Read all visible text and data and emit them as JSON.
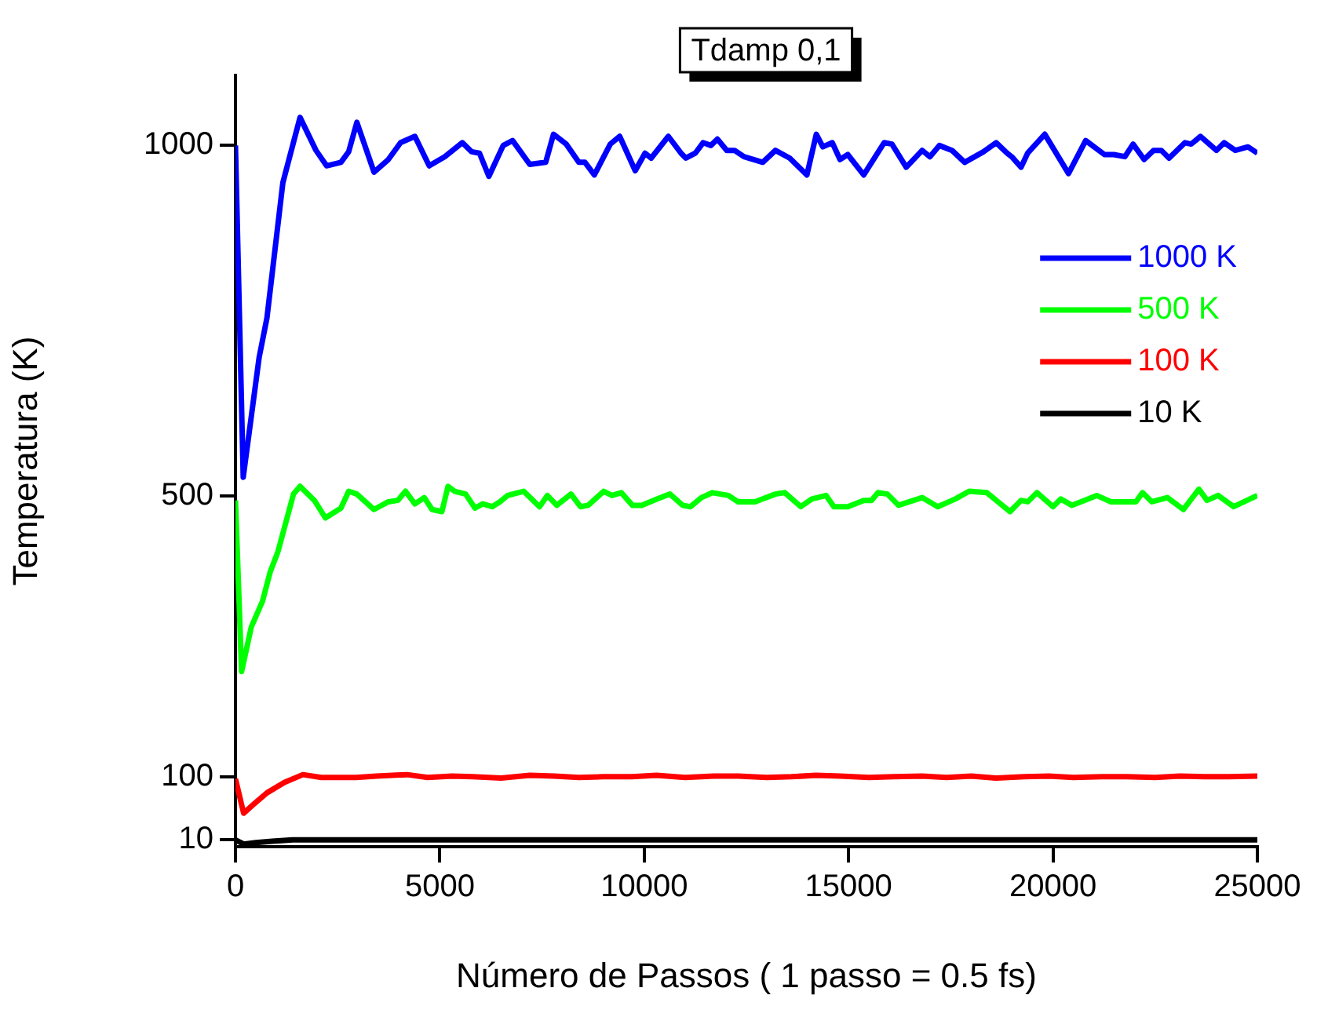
{
  "chart_data": {
    "type": "line",
    "title": "Tdamp 0,1",
    "xlabel": "Número de Passos ( 1 passo = 0.5 fs)",
    "ylabel": "Temperatura (K)",
    "xlim": [
      0,
      25000
    ],
    "xticks": [
      0,
      5000,
      10000,
      15000,
      20000,
      25000
    ],
    "ylim": [
      0,
      1100
    ],
    "yticks": [
      10,
      100,
      500,
      1000
    ],
    "grid": false,
    "legend": "right",
    "marker": "none",
    "line_style": "solid",
    "series": [
      {
        "name": "1000 K",
        "color": "#0000ff",
        "x": [
          0,
          190,
          580,
          770,
          1160,
          1580,
          1970,
          2230,
          2580,
          2770,
          2970,
          3390,
          3740,
          4040,
          4390,
          4740,
          5120,
          5550,
          5780,
          5970,
          6200,
          6550,
          6780,
          7200,
          7590,
          7780,
          8090,
          8400,
          8550,
          8780,
          9170,
          9400,
          9780,
          10020,
          10170,
          10590,
          10900,
          11020,
          11250,
          11440,
          11630,
          11790,
          12020,
          12210,
          12440,
          12900,
          13210,
          13560,
          13980,
          14210,
          14370,
          14600,
          14790,
          14980,
          15370,
          15870,
          16060,
          16410,
          16800,
          16990,
          17220,
          17530,
          17840,
          18300,
          18610,
          18880,
          18990,
          19220,
          19380,
          19800,
          20380,
          20800,
          21260,
          21490,
          21760,
          21960,
          22230,
          22460,
          22650,
          22840,
          23230,
          23380,
          23610,
          24000,
          24190,
          24460,
          24770,
          25000
        ],
        "values": [
          1000,
          527,
          698,
          754,
          947,
          1040,
          993,
          971,
          976,
          991,
          1033,
          962,
          980,
          1004,
          1013,
          971,
          984,
          1004,
          991,
          989,
          956,
          1000,
          1007,
          973,
          976,
          1016,
          1002,
          976,
          976,
          958,
          1002,
          1013,
          964,
          989,
          982,
          1013,
          989,
          982,
          989,
          1004,
          1000,
          1009,
          993,
          993,
          984,
          976,
          993,
          982,
          958,
          1016,
          998,
          1004,
          980,
          987,
          958,
          1004,
          1002,
          969,
          993,
          984,
          1000,
          993,
          976,
          991,
          1004,
          989,
          984,
          969,
          989,
          1016,
          960,
          1007,
          987,
          987,
          984,
          1002,
          980,
          993,
          993,
          982,
          1004,
          1002,
          1013,
          993,
          1004,
          993,
          998,
          989
        ]
      },
      {
        "name": "500 K",
        "color": "#00ff00",
        "x": [
          0,
          150,
          390,
          660,
          850,
          1040,
          1420,
          1580,
          1930,
          2200,
          2580,
          2770,
          2970,
          3390,
          3740,
          3970,
          4160,
          4390,
          4620,
          4810,
          5050,
          5200,
          5360,
          5630,
          5860,
          6050,
          6280,
          6470,
          6660,
          7050,
          7440,
          7630,
          7860,
          8210,
          8440,
          8630,
          9010,
          9210,
          9440,
          9710,
          9940,
          10320,
          10630,
          10940,
          11130,
          11400,
          11670,
          12060,
          12290,
          12560,
          12710,
          13210,
          13440,
          13830,
          14100,
          14450,
          14640,
          14980,
          15370,
          15560,
          15720,
          15950,
          16220,
          16800,
          17180,
          17610,
          17950,
          18380,
          18950,
          19220,
          19380,
          19610,
          20000,
          20190,
          20460,
          20770,
          21070,
          21420,
          22030,
          22190,
          22420,
          22800,
          23190,
          23570,
          23770,
          24040,
          24420,
          25000
        ],
        "values": [
          494,
          250,
          314,
          350,
          392,
          421,
          503,
          514,
          494,
          469,
          483,
          507,
          503,
          481,
          492,
          494,
          507,
          489,
          498,
          481,
          478,
          514,
          507,
          503,
          483,
          489,
          485,
          492,
          501,
          507,
          485,
          501,
          487,
          503,
          485,
          487,
          507,
          501,
          505,
          487,
          487,
          496,
          503,
          487,
          485,
          498,
          505,
          501,
          492,
          492,
          492,
          503,
          505,
          485,
          496,
          501,
          485,
          485,
          494,
          494,
          505,
          503,
          487,
          498,
          485,
          496,
          507,
          505,
          478,
          494,
          492,
          505,
          485,
          496,
          487,
          494,
          501,
          492,
          492,
          505,
          492,
          498,
          481,
          510,
          494,
          501,
          485,
          501
        ]
      },
      {
        "name": "100 K",
        "color": "#ff0000",
        "x": [
          0,
          200,
          450,
          770,
          1200,
          1650,
          2100,
          2950,
          3450,
          4200,
          4700,
          5300,
          5800,
          6500,
          7200,
          7800,
          8400,
          9000,
          9700,
          10300,
          11000,
          11700,
          12300,
          13000,
          13600,
          14200,
          14800,
          15500,
          16100,
          16800,
          17400,
          18000,
          18600,
          19300,
          19900,
          20500,
          21200,
          21800,
          22500,
          23100,
          23700,
          24300,
          25000
        ],
        "values": [
          97,
          48,
          61,
          77,
          92,
          103,
          99,
          99,
          101,
          103,
          99,
          101,
          100,
          98,
          102,
          101,
          99,
          100,
          100,
          102,
          99,
          101,
          101,
          99,
          100,
          102,
          101,
          99,
          100,
          101,
          99,
          101,
          98,
          100,
          101,
          99,
          100,
          100,
          99,
          101,
          100,
          100,
          101
        ]
      },
      {
        "name": "10 K",
        "color": "#000000",
        "x": [
          0,
          200,
          500,
          900,
          1400,
          2000,
          3000,
          4000,
          5000,
          6000,
          7000,
          8000,
          9000,
          10000,
          11000,
          12000,
          13000,
          14000,
          15000,
          16000,
          17000,
          18000,
          19000,
          20000,
          21000,
          22000,
          23000,
          24000,
          25000
        ],
        "values": [
          10,
          4,
          6,
          8,
          10,
          10,
          10,
          10,
          10,
          10,
          10,
          10,
          10,
          10,
          10,
          10,
          10,
          10,
          10,
          10,
          10,
          10,
          10,
          10,
          10,
          10,
          10,
          10,
          10
        ]
      }
    ]
  }
}
